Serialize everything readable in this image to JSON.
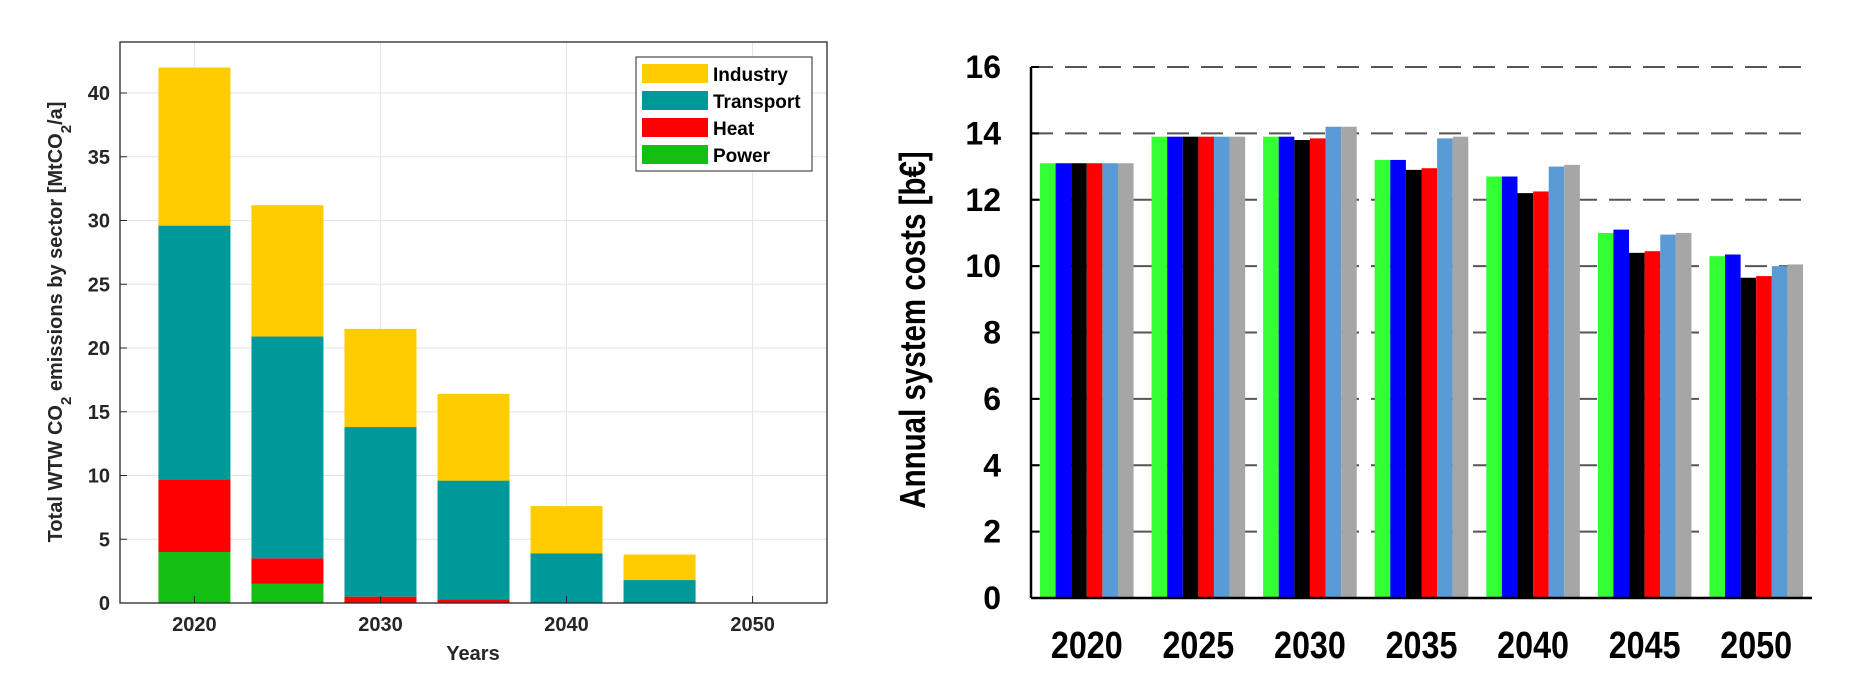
{
  "chart_data": [
    {
      "type": "bar",
      "stacked": true,
      "ylabel_prefix": "Total WTW CO",
      "ylabel_sub1": "2",
      "ylabel_middle": " emissions by sector [MtCO",
      "ylabel_sub2": "2",
      "ylabel_suffix": "/a]",
      "xlabel": "Years",
      "categories": [
        2020,
        2025,
        2030,
        2035,
        2040,
        2045,
        2050
      ],
      "x_ticks": [
        "2020",
        "2030",
        "2040",
        "2050"
      ],
      "y_ticks": [
        "0",
        "5",
        "10",
        "15",
        "20",
        "25",
        "30",
        "35",
        "40"
      ],
      "xlim": [
        2016,
        2054
      ],
      "ylim": [
        0,
        44
      ],
      "grid": true,
      "legend_position": "top-right",
      "series": [
        {
          "name": "Power",
          "color": "#14bf14",
          "values": [
            4.0,
            1.5,
            0.0,
            0.0,
            0.0,
            0.0,
            0.0
          ]
        },
        {
          "name": "Heat",
          "color": "#ff0000",
          "values": [
            5.7,
            2.0,
            0.5,
            0.3,
            0.0,
            0.0,
            0.0
          ]
        },
        {
          "name": "Transport",
          "color": "#00999a",
          "values": [
            19.9,
            17.4,
            13.3,
            9.3,
            3.9,
            1.8,
            0.0
          ]
        },
        {
          "name": "Industry",
          "color": "#ffcc00",
          "values": [
            12.4,
            10.3,
            7.7,
            6.8,
            3.7,
            2.0,
            0.0
          ]
        }
      ]
    },
    {
      "type": "bar",
      "grouped": true,
      "ylabel": "Annual system costs [b€]",
      "xlabel": "",
      "categories": [
        "2020",
        "2025",
        "2030",
        "2035",
        "2040",
        "2045",
        "2050"
      ],
      "y_ticks": [
        "0",
        "2",
        "4",
        "6",
        "8",
        "10",
        "12",
        "14",
        "16"
      ],
      "ylim": [
        0,
        16
      ],
      "grid": "dashed horizontal",
      "legend": "none",
      "series": [
        {
          "color": "#33ff33",
          "values": [
            13.1,
            13.9,
            13.9,
            13.2,
            12.7,
            11.0,
            10.3
          ]
        },
        {
          "color": "#0000ff",
          "values": [
            13.1,
            13.9,
            13.9,
            13.2,
            12.7,
            11.1,
            10.35
          ]
        },
        {
          "color": "#000000",
          "values": [
            13.1,
            13.9,
            13.8,
            12.9,
            12.2,
            10.4,
            9.65
          ]
        },
        {
          "color": "#ff0000",
          "values": [
            13.1,
            13.9,
            13.85,
            12.95,
            12.25,
            10.45,
            9.7
          ]
        },
        {
          "color": "#5b9bd5",
          "values": [
            13.1,
            13.9,
            14.2,
            13.85,
            13.0,
            10.95,
            10.0
          ]
        },
        {
          "color": "#a6a6a6",
          "values": [
            13.1,
            13.9,
            14.2,
            13.9,
            13.05,
            11.0,
            10.05
          ]
        }
      ]
    }
  ]
}
